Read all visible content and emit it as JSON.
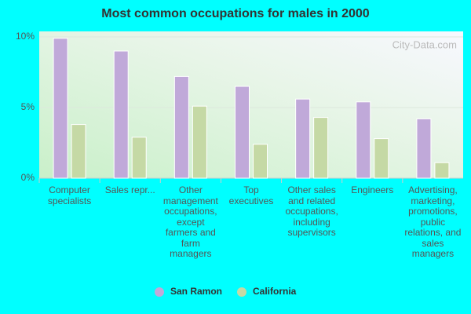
{
  "chart_data": {
    "type": "bar",
    "title": "Most common occupations for males in 2000",
    "categories": [
      "Computer specialists",
      "Sales repr...",
      "Other management occupations, except farmers and farm managers",
      "Top executives",
      "Other sales and related occupations, including supervisors",
      "Engineers",
      "Advertising, marketing, promotions, public relations, and sales managers"
    ],
    "series": [
      {
        "name": "San Ramon",
        "color": "#c0a9d9",
        "values": [
          9.9,
          9.0,
          7.2,
          6.5,
          5.6,
          5.4,
          4.2
        ]
      },
      {
        "name": "California",
        "color": "#c5d9a5",
        "values": [
          3.8,
          2.9,
          5.1,
          2.4,
          4.3,
          2.8,
          1.1
        ]
      }
    ],
    "ylim": [
      0,
      10
    ],
    "yticks": [
      {
        "value": 0,
        "label": "0%"
      },
      {
        "value": 5,
        "label": "5%"
      },
      {
        "value": 10,
        "label": "10%"
      }
    ],
    "grid": true,
    "legend": "bottom",
    "watermark": "City-Data.com"
  }
}
